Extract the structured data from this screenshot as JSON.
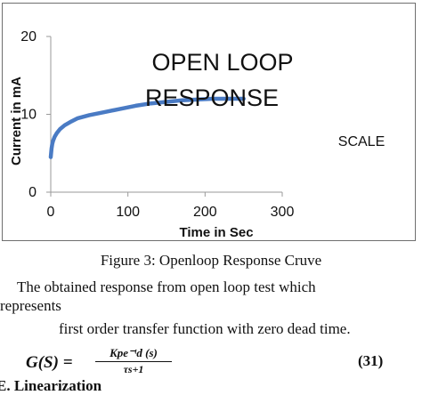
{
  "figure": {
    "chart_data": {
      "type": "line",
      "title": "OPEN LOOP RESPONSE",
      "title_lines": [
        "OPEN LOOP",
        "RESPONSE"
      ],
      "side_label": "SCALE",
      "xlabel": "Time in Sec",
      "ylabel": "Current in mA",
      "xlim": [
        0,
        300
      ],
      "ylim": [
        0,
        20
      ],
      "x_ticks": [
        0,
        100,
        200,
        300
      ],
      "y_ticks": [
        0,
        10,
        20
      ],
      "grid": false,
      "series": [
        {
          "color": "#4a7bc4",
          "x": [
            0,
            1,
            2,
            3,
            5,
            8,
            12,
            18,
            25,
            35,
            50,
            70,
            90,
            110,
            130,
            150,
            170,
            190,
            210,
            230,
            250
          ],
          "y": [
            4.5,
            5.6,
            6.2,
            6.6,
            7.1,
            7.6,
            8.1,
            8.6,
            9.0,
            9.5,
            9.9,
            10.3,
            10.7,
            11.1,
            11.4,
            11.6,
            11.8,
            11.9,
            12.0,
            12.0,
            12.0
          ]
        }
      ]
    },
    "caption": "Figure 3: Openloop Response Cruve"
  },
  "body": {
    "line1": "The obtained response from open loop test which",
    "line2": "represents",
    "line3": "first order transfer function with zero dead time."
  },
  "equation": {
    "lhs": "G(S) =",
    "numerator": "Kpe⁻ᵗd (s)",
    "denominator": "τs+1",
    "number": "(31)"
  },
  "section": {
    "heading": "E. Linearization"
  }
}
